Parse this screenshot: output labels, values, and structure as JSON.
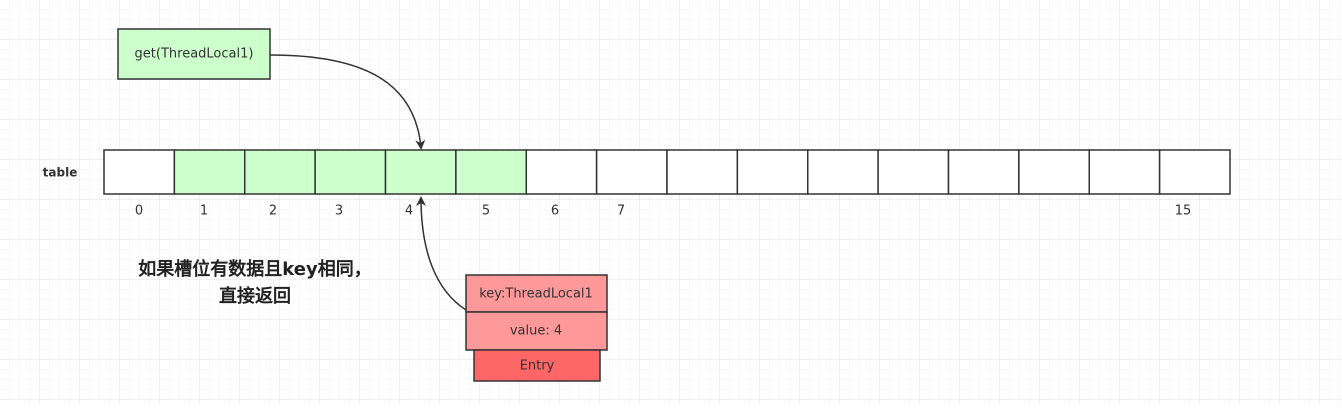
{
  "request": {
    "label": "get(ThreadLocal1)"
  },
  "table": {
    "label": "table",
    "slot_labels": [
      0,
      1,
      2,
      3,
      4,
      5,
      6,
      7,
      15
    ]
  },
  "caption": {
    "lines": [
      "如果槽位有数据且key相同，",
      "直接返回"
    ]
  },
  "entry": {
    "key": "key:ThreadLocal1",
    "value": "value: 4",
    "name": "Entry"
  }
}
